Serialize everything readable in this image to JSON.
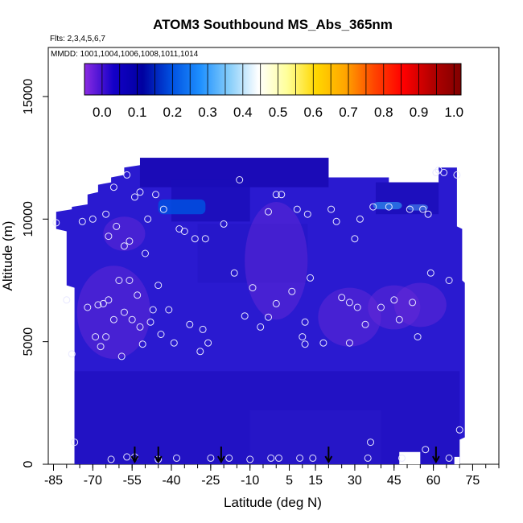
{
  "chart_data": {
    "type": "heatmap",
    "title": "ATOM3 Southbound MS_Abs_365nm",
    "flights_note": "Flts: 2,3,4,5,6,7",
    "dates_note": "MMDD: 1001,1004,1006,1008,1011,1014",
    "xlabel": "Latitude (deg N)",
    "ylabel": "Altitude (m)",
    "xlim": [
      -87,
      85
    ],
    "ylim": [
      0,
      17000
    ],
    "x_ticks": [
      -85,
      -70,
      -55,
      -40,
      -25,
      -10,
      5,
      15,
      30,
      45,
      60,
      75
    ],
    "y_ticks": [
      0,
      5000,
      10000,
      15000
    ],
    "colorbar": {
      "ticks": [
        "0.0",
        "0.1",
        "0.2",
        "0.3",
        "0.4",
        "0.5",
        "0.6",
        "0.7",
        "0.8",
        "0.9",
        "1.0"
      ],
      "range": [
        -0.05,
        1.02
      ],
      "colors": [
        "#8b2be2",
        "#1400c8",
        "#0000a0",
        "#0050e0",
        "#1e90ff",
        "#87cefa",
        "#ffffff",
        "#ffff99",
        "#ffd700",
        "#ffa500",
        "#ff4500",
        "#ff0000",
        "#b40000",
        "#800000"
      ]
    },
    "field_color": "#2a1ad0",
    "marker_color": "#e8e8ff",
    "profile_lat_markers": [
      -54,
      -45,
      -21,
      20,
      61
    ],
    "sample_points": [
      [
        -84,
        9850
      ],
      [
        -80,
        6700
      ],
      [
        -78,
        4500
      ],
      [
        -77,
        900
      ],
      [
        -74,
        9900
      ],
      [
        -72,
        6400
      ],
      [
        -70,
        10000
      ],
      [
        -69,
        5200
      ],
      [
        -68,
        6500
      ],
      [
        -67,
        4800
      ],
      [
        -66,
        6550
      ],
      [
        -65,
        10200
      ],
      [
        -65,
        5200
      ],
      [
        -64,
        6700
      ],
      [
        -64,
        9300
      ],
      [
        -63,
        200
      ],
      [
        -62,
        11300
      ],
      [
        -62,
        5900
      ],
      [
        -61,
        9700
      ],
      [
        -60,
        7500
      ],
      [
        -59,
        4400
      ],
      [
        -58,
        8900
      ],
      [
        -58,
        6200
      ],
      [
        -57,
        11800
      ],
      [
        -57,
        300
      ],
      [
        -56,
        9100
      ],
      [
        -56,
        7500
      ],
      [
        -55,
        5900
      ],
      [
        -54,
        10900
      ],
      [
        -54,
        300
      ],
      [
        -53,
        6900
      ],
      [
        -52,
        5600
      ],
      [
        -52,
        11100
      ],
      [
        -51,
        4900
      ],
      [
        -50,
        8600
      ],
      [
        -49,
        10000
      ],
      [
        -48,
        5800
      ],
      [
        -47,
        6300
      ],
      [
        -46,
        11000
      ],
      [
        -45,
        7300
      ],
      [
        -45,
        200
      ],
      [
        -44,
        5300
      ],
      [
        -43,
        10400
      ],
      [
        -41,
        6300
      ],
      [
        -39,
        4950
      ],
      [
        -38,
        250
      ],
      [
        -37,
        9600
      ],
      [
        -35,
        9500
      ],
      [
        -33,
        5700
      ],
      [
        -31,
        9200
      ],
      [
        -29,
        4600
      ],
      [
        -28,
        5500
      ],
      [
        -27,
        9200
      ],
      [
        -26,
        4950
      ],
      [
        -25,
        250
      ],
      [
        -20,
        9800
      ],
      [
        -18,
        250
      ],
      [
        -16,
        7800
      ],
      [
        -14,
        11600
      ],
      [
        -12,
        6050
      ],
      [
        -10,
        200
      ],
      [
        -9,
        7200
      ],
      [
        -6,
        5600
      ],
      [
        -3,
        6000
      ],
      [
        -3,
        10300
      ],
      [
        -2,
        250
      ],
      [
        0,
        6550
      ],
      [
        0,
        11000
      ],
      [
        1,
        250
      ],
      [
        2,
        11000
      ],
      [
        6,
        7050
      ],
      [
        8,
        10400
      ],
      [
        9,
        250
      ],
      [
        10,
        5200
      ],
      [
        11,
        4900
      ],
      [
        11,
        5800
      ],
      [
        12,
        10200
      ],
      [
        13,
        7600
      ],
      [
        14,
        250
      ],
      [
        18,
        4950
      ],
      [
        21,
        10400
      ],
      [
        23,
        9900
      ],
      [
        25,
        6800
      ],
      [
        28,
        6600
      ],
      [
        28,
        4950
      ],
      [
        30,
        9200
      ],
      [
        31,
        6400
      ],
      [
        32,
        10000
      ],
      [
        34,
        5700
      ],
      [
        35,
        250
      ],
      [
        36,
        900
      ],
      [
        37,
        10500
      ],
      [
        40,
        6400
      ],
      [
        43,
        10500
      ],
      [
        45,
        6700
      ],
      [
        47,
        5900
      ],
      [
        48,
        250
      ],
      [
        51,
        10400
      ],
      [
        52,
        6600
      ],
      [
        54,
        5200
      ],
      [
        56,
        10400
      ],
      [
        57,
        600
      ],
      [
        58,
        10200
      ],
      [
        59,
        7800
      ],
      [
        61,
        11900
      ],
      [
        62,
        12000
      ],
      [
        64,
        11900
      ],
      [
        66,
        250
      ],
      [
        66,
        7500
      ],
      [
        69,
        11800
      ],
      [
        70,
        1400
      ]
    ]
  }
}
